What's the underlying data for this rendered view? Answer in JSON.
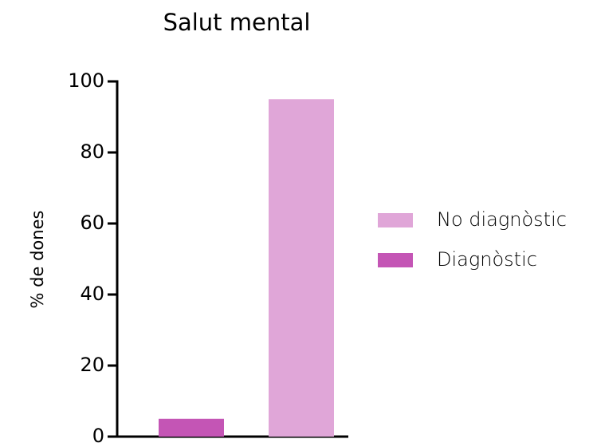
{
  "chart_data": {
    "type": "bar",
    "title": "Salut mental",
    "y_label": "% de dones",
    "categories": [
      null,
      null
    ],
    "series": [
      {
        "name": "No diagnòstic",
        "color": "#e0a6d8",
        "values": [
          null,
          95
        ]
      },
      {
        "name": "Diagnòstic",
        "color": "#c455b5",
        "values": [
          5,
          null
        ]
      }
    ],
    "ylim": [
      0,
      100
    ],
    "yticks": [
      0,
      20,
      40,
      60,
      80,
      100
    ],
    "grid": false,
    "legend": "right"
  }
}
